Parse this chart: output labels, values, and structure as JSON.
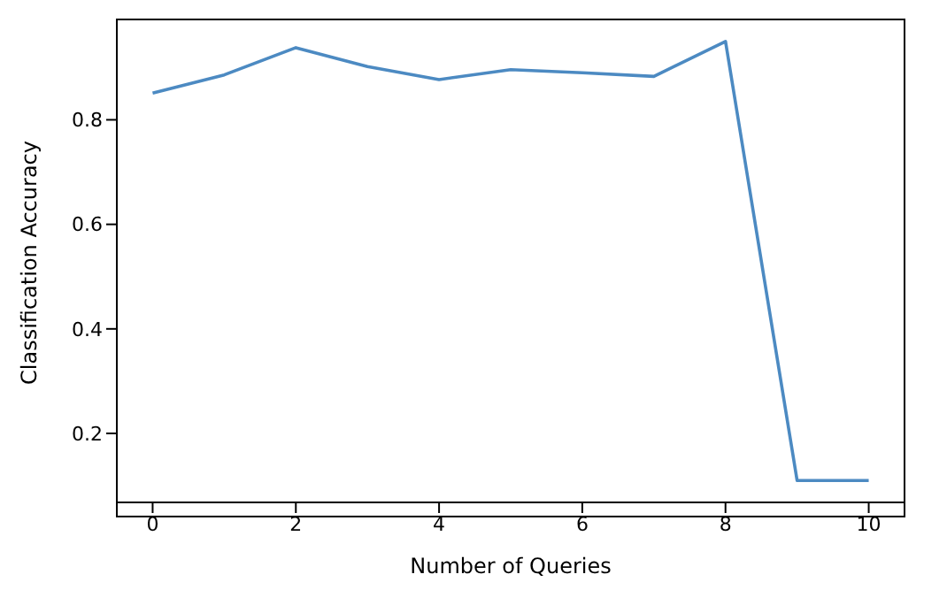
{
  "chart_data": {
    "type": "line",
    "xlabel": "Number of Queries",
    "ylabel": "Classification Accuracy",
    "x": [
      0,
      1,
      2,
      3,
      4,
      5,
      6,
      7,
      8,
      9,
      10
    ],
    "series": [
      {
        "color": "#4c8ac2",
        "values": [
          0.851,
          0.886,
          0.938,
          0.902,
          0.877,
          0.896,
          0.89,
          0.883,
          0.95,
          0.11,
          0.11
        ]
      }
    ],
    "xlim": [
      -0.5,
      10.5
    ],
    "ylim": [
      0.068,
      0.992
    ],
    "xticks": [
      0,
      2,
      4,
      6,
      8,
      10
    ],
    "yticks": [
      0.2,
      0.4,
      0.6,
      0.8
    ],
    "grid": false,
    "legend": false,
    "marker": "none",
    "line_style": "solid"
  }
}
